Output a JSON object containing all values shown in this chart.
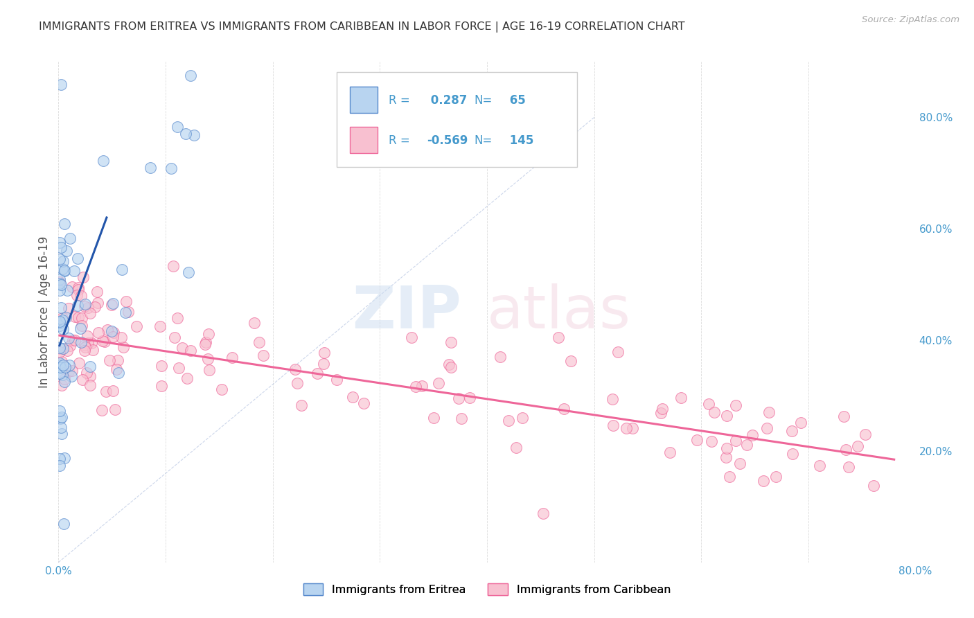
{
  "title": "IMMIGRANTS FROM ERITREA VS IMMIGRANTS FROM CARIBBEAN IN LABOR FORCE | AGE 16-19 CORRELATION CHART",
  "source": "Source: ZipAtlas.com",
  "ylabel": "In Labor Force | Age 16-19",
  "xlim": [
    0.0,
    0.8
  ],
  "ylim": [
    0.0,
    0.9
  ],
  "yticks_right": [
    0.2,
    0.4,
    0.6,
    0.8
  ],
  "ytick_right_labels": [
    "20.0%",
    "40.0%",
    "60.0%",
    "80.0%"
  ],
  "R_eritrea": 0.287,
  "N_eritrea": 65,
  "R_caribbean": -0.569,
  "N_caribbean": 145,
  "color_eritrea_face": "#b8d4f0",
  "color_caribbean_face": "#f8c0d0",
  "color_eritrea_edge": "#5588cc",
  "color_caribbean_edge": "#ee6699",
  "line_color_eritrea": "#2255aa",
  "line_color_caribbean": "#ee6699",
  "background_color": "#ffffff",
  "grid_color": "#cccccc",
  "label_color": "#4499cc",
  "legend_text_color": "#4499cc"
}
